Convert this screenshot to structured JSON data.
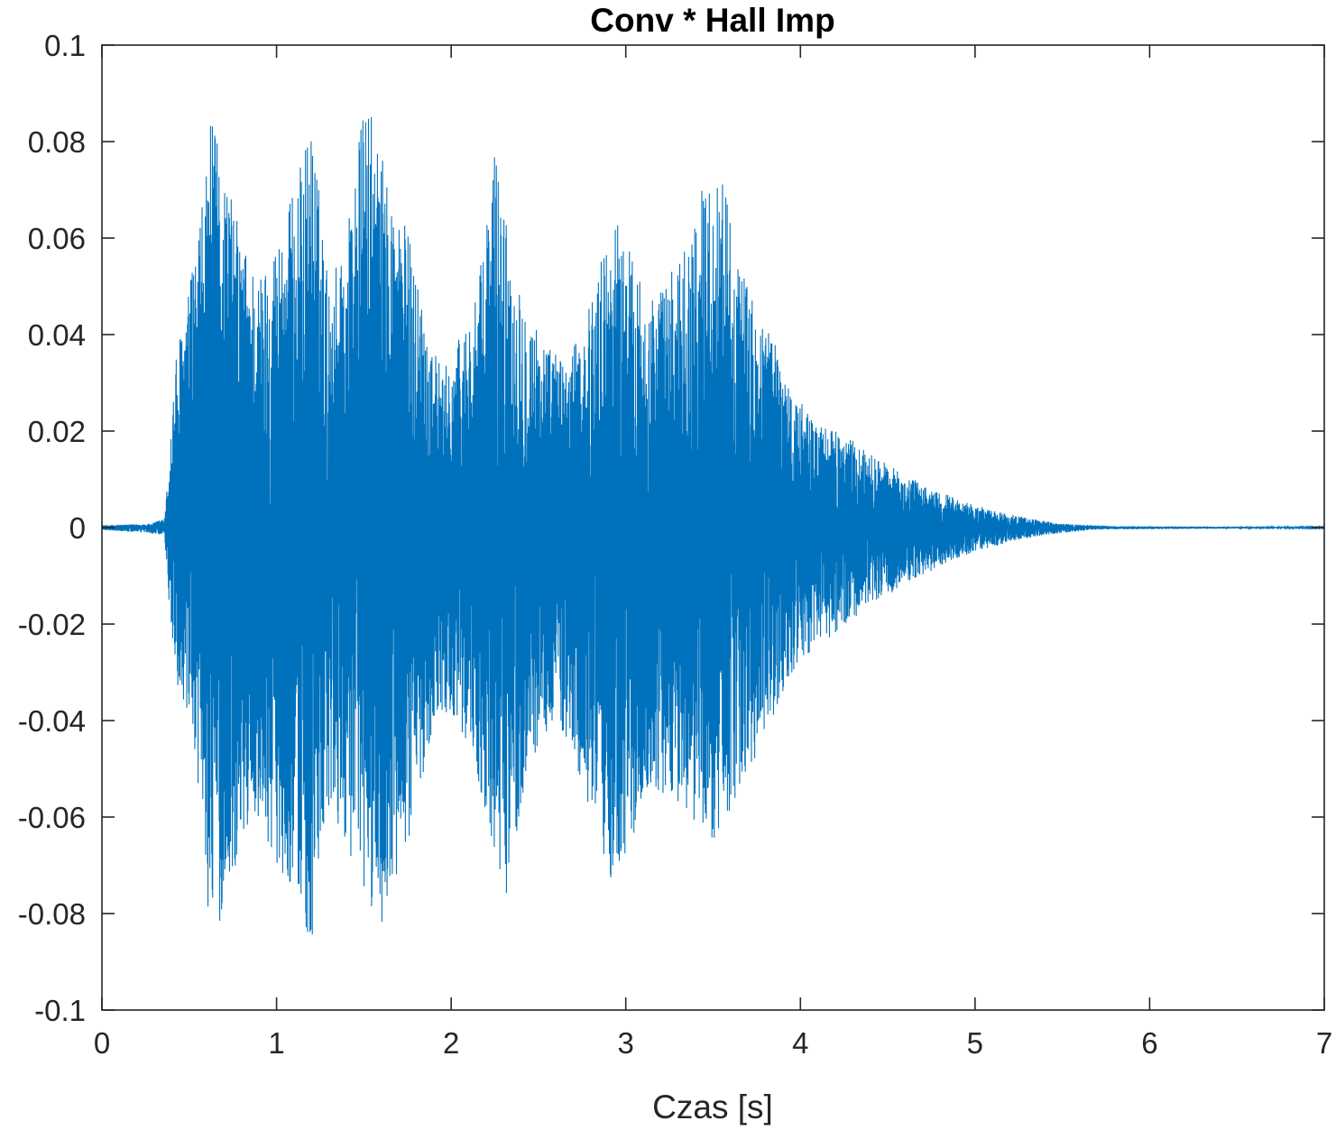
{
  "chart_data": {
    "type": "line",
    "title": "Conv * Hall Imp",
    "xlabel": "Czas [s]",
    "ylabel": "",
    "xlim": [
      0,
      7
    ],
    "ylim": [
      -0.1,
      0.1
    ],
    "x_ticks": [
      "0",
      "1",
      "2",
      "3",
      "4",
      "5",
      "6",
      "7"
    ],
    "x_tick_values": [
      0,
      1,
      2,
      3,
      4,
      5,
      6,
      7
    ],
    "y_ticks": [
      "-0.1",
      "-0.08",
      "-0.06",
      "-0.04",
      "-0.02",
      "0",
      "0.02",
      "0.04",
      "0.06",
      "0.08",
      "0.1"
    ],
    "y_tick_values": [
      -0.1,
      -0.08,
      -0.06,
      -0.04,
      -0.02,
      0,
      0.02,
      0.04,
      0.06,
      0.08,
      0.1
    ],
    "grid": false,
    "series": [
      {
        "color": "#0072bd",
        "envelope_upper": [
          [
            0,
            0.0005
          ],
          [
            0.28,
            0.0008
          ],
          [
            0.36,
            0.002
          ],
          [
            0.38,
            0.012
          ],
          [
            0.42,
            0.035
          ],
          [
            0.5,
            0.05
          ],
          [
            0.58,
            0.068
          ],
          [
            0.62,
            0.085
          ],
          [
            0.7,
            0.075
          ],
          [
            0.8,
            0.06
          ],
          [
            0.9,
            0.052
          ],
          [
            1.0,
            0.06
          ],
          [
            1.1,
            0.07
          ],
          [
            1.2,
            0.085
          ],
          [
            1.3,
            0.05
          ],
          [
            1.4,
            0.062
          ],
          [
            1.5,
            0.088
          ],
          [
            1.55,
            0.085
          ],
          [
            1.65,
            0.07
          ],
          [
            1.75,
            0.062
          ],
          [
            1.85,
            0.045
          ],
          [
            1.95,
            0.032
          ],
          [
            2.05,
            0.04
          ],
          [
            2.15,
            0.048
          ],
          [
            2.25,
            0.08
          ],
          [
            2.35,
            0.055
          ],
          [
            2.45,
            0.045
          ],
          [
            2.55,
            0.038
          ],
          [
            2.65,
            0.035
          ],
          [
            2.75,
            0.04
          ],
          [
            2.85,
            0.055
          ],
          [
            2.95,
            0.065
          ],
          [
            3.05,
            0.055
          ],
          [
            3.15,
            0.048
          ],
          [
            3.25,
            0.052
          ],
          [
            3.35,
            0.06
          ],
          [
            3.45,
            0.072
          ],
          [
            3.55,
            0.075
          ],
          [
            3.65,
            0.055
          ],
          [
            3.75,
            0.045
          ],
          [
            3.85,
            0.04
          ],
          [
            3.95,
            0.028
          ],
          [
            4.1,
            0.022
          ],
          [
            4.3,
            0.018
          ],
          [
            4.5,
            0.013
          ],
          [
            4.7,
            0.009
          ],
          [
            4.9,
            0.006
          ],
          [
            5.1,
            0.0035
          ],
          [
            5.3,
            0.002
          ],
          [
            5.5,
            0.0008
          ],
          [
            5.8,
            0.0003
          ],
          [
            7.0,
            0.0001
          ]
        ],
        "envelope_lower": [
          [
            0,
            -0.0005
          ],
          [
            0.28,
            -0.0012
          ],
          [
            0.36,
            -0.002
          ],
          [
            0.38,
            -0.015
          ],
          [
            0.42,
            -0.03
          ],
          [
            0.5,
            -0.045
          ],
          [
            0.58,
            -0.06
          ],
          [
            0.62,
            -0.088
          ],
          [
            0.7,
            -0.08
          ],
          [
            0.8,
            -0.065
          ],
          [
            0.9,
            -0.06
          ],
          [
            1.0,
            -0.07
          ],
          [
            1.1,
            -0.075
          ],
          [
            1.2,
            -0.088
          ],
          [
            1.3,
            -0.06
          ],
          [
            1.4,
            -0.065
          ],
          [
            1.5,
            -0.078
          ],
          [
            1.6,
            -0.082
          ],
          [
            1.7,
            -0.075
          ],
          [
            1.8,
            -0.058
          ],
          [
            1.9,
            -0.04
          ],
          [
            2.0,
            -0.038
          ],
          [
            2.1,
            -0.045
          ],
          [
            2.2,
            -0.06
          ],
          [
            2.3,
            -0.08
          ],
          [
            2.4,
            -0.058
          ],
          [
            2.5,
            -0.045
          ],
          [
            2.6,
            -0.04
          ],
          [
            2.7,
            -0.048
          ],
          [
            2.8,
            -0.06
          ],
          [
            2.9,
            -0.074
          ],
          [
            3.0,
            -0.068
          ],
          [
            3.1,
            -0.058
          ],
          [
            3.2,
            -0.055
          ],
          [
            3.3,
            -0.058
          ],
          [
            3.4,
            -0.062
          ],
          [
            3.5,
            -0.065
          ],
          [
            3.6,
            -0.06
          ],
          [
            3.7,
            -0.05
          ],
          [
            3.8,
            -0.045
          ],
          [
            3.9,
            -0.035
          ],
          [
            4.0,
            -0.028
          ],
          [
            4.2,
            -0.022
          ],
          [
            4.4,
            -0.016
          ],
          [
            4.6,
            -0.012
          ],
          [
            4.8,
            -0.008
          ],
          [
            5.0,
            -0.005
          ],
          [
            5.2,
            -0.003
          ],
          [
            5.4,
            -0.0015
          ],
          [
            5.7,
            -0.0004
          ],
          [
            7.0,
            -0.0001
          ]
        ]
      }
    ]
  }
}
